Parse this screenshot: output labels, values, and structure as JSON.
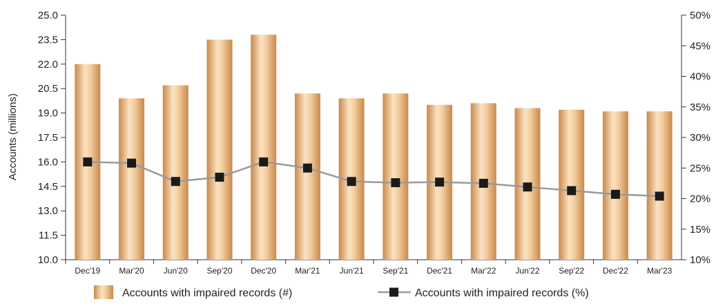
{
  "chart_data": {
    "type": "bar",
    "categories": [
      "Dec'19",
      "Mar'20",
      "Jun'20",
      "Sep'20",
      "Dec'20",
      "Mar'21",
      "Jun'21",
      "Sep'21",
      "Dec'21",
      "Mar'22",
      "Jun'22",
      "Sep'22",
      "Dec'22",
      "Mar'23"
    ],
    "series": [
      {
        "name": "Accounts with impaired records (#)",
        "type": "bar",
        "axis": "left",
        "values": [
          22.0,
          19.9,
          20.7,
          23.5,
          23.8,
          20.2,
          19.9,
          20.2,
          19.5,
          19.6,
          19.3,
          19.2,
          19.1,
          19.1
        ]
      },
      {
        "name": "Accounts with impaired records (%)",
        "type": "line",
        "axis": "right",
        "values": [
          26.0,
          25.8,
          22.8,
          23.5,
          26.0,
          25.0,
          22.8,
          22.6,
          22.7,
          22.5,
          21.9,
          21.3,
          20.7,
          20.4
        ]
      }
    ],
    "ylabel": "Accounts (millions)",
    "ylim": [
      10.0,
      25.0
    ],
    "yticks": [
      "10.0",
      "11.5",
      "13.0",
      "14.5",
      "16.0",
      "17.5",
      "19.0",
      "20.5",
      "22.0",
      "23.5",
      "25.0"
    ],
    "y2lim": [
      10,
      50
    ],
    "y2ticks": [
      "10%",
      "15%",
      "20%",
      "25%",
      "30%",
      "35%",
      "40%",
      "45%",
      "50%"
    ],
    "y2tick_values": [
      10,
      15,
      20,
      25,
      30,
      35,
      40,
      45,
      50
    ],
    "legend_position": "bottom",
    "colors": {
      "bar_dark": "#c8894a",
      "bar_light": "#fbe2c2",
      "line": "#9a9a9a",
      "marker": "#1a1a1a",
      "axis": "#333333"
    }
  }
}
